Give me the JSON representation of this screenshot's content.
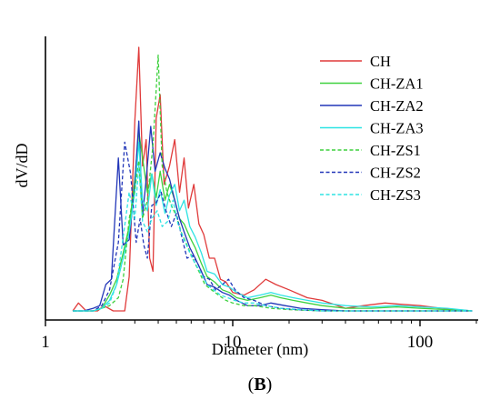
{
  "chart_data": {
    "type": "line",
    "panel_label": {
      "open": "(",
      "letter": "B",
      "close": ")"
    },
    "xlabel": "Diameter (nm)",
    "ylabel": "dV/dD",
    "xscale": "log",
    "xlim": [
      1,
      200
    ],
    "ylim": [
      0,
      1
    ],
    "x_ticks": [
      1,
      10,
      100
    ],
    "x_tick_labels": [
      "1",
      "10",
      "100"
    ],
    "grid": false,
    "legend_position": "top-right",
    "series": [
      {
        "name": "CH",
        "color": "#e03a3a",
        "dash": "solid",
        "points": [
          [
            1.4,
            0
          ],
          [
            1.5,
            0.03
          ],
          [
            1.65,
            0
          ],
          [
            1.9,
            0
          ],
          [
            2.05,
            0.02
          ],
          [
            2.3,
            0
          ],
          [
            2.5,
            0
          ],
          [
            2.65,
            0
          ],
          [
            2.8,
            0.13
          ],
          [
            3.0,
            0.72
          ],
          [
            3.15,
            1.0
          ],
          [
            3.3,
            0.55
          ],
          [
            3.45,
            0.65
          ],
          [
            3.6,
            0.2
          ],
          [
            3.75,
            0.15
          ],
          [
            3.9,
            0.73
          ],
          [
            4.1,
            0.82
          ],
          [
            4.3,
            0.48
          ],
          [
            4.6,
            0.55
          ],
          [
            4.9,
            0.65
          ],
          [
            5.2,
            0.45
          ],
          [
            5.5,
            0.58
          ],
          [
            5.8,
            0.39
          ],
          [
            6.2,
            0.48
          ],
          [
            6.6,
            0.33
          ],
          [
            7.0,
            0.29
          ],
          [
            7.5,
            0.2
          ],
          [
            8.0,
            0.2
          ],
          [
            8.6,
            0.12
          ],
          [
            9.2,
            0.11
          ],
          [
            10.0,
            0.07
          ],
          [
            11.5,
            0.06
          ],
          [
            13.0,
            0.08
          ],
          [
            15.0,
            0.12
          ],
          [
            17.0,
            0.1
          ],
          [
            20.0,
            0.08
          ],
          [
            25.0,
            0.05
          ],
          [
            30.0,
            0.04
          ],
          [
            40.0,
            0.01
          ],
          [
            50.0,
            0.02
          ],
          [
            65.0,
            0.03
          ],
          [
            80.0,
            0.025
          ],
          [
            100.0,
            0.02
          ],
          [
            130.0,
            0.01
          ],
          [
            190.0,
            0.0
          ]
        ]
      },
      {
        "name": "CH-ZA1",
        "color": "#3ed13e",
        "dash": "solid",
        "points": [
          [
            1.4,
            0
          ],
          [
            1.6,
            0
          ],
          [
            1.8,
            0
          ],
          [
            2.0,
            0.01
          ],
          [
            2.2,
            0.06
          ],
          [
            2.4,
            0.12
          ],
          [
            2.6,
            0.22
          ],
          [
            2.8,
            0.32
          ],
          [
            3.0,
            0.5
          ],
          [
            3.15,
            0.68
          ],
          [
            3.3,
            0.58
          ],
          [
            3.5,
            0.45
          ],
          [
            3.7,
            0.52
          ],
          [
            3.9,
            0.43
          ],
          [
            4.1,
            0.53
          ],
          [
            4.35,
            0.42
          ],
          [
            4.6,
            0.48
          ],
          [
            4.9,
            0.42
          ],
          [
            5.2,
            0.35
          ],
          [
            5.5,
            0.33
          ],
          [
            5.9,
            0.28
          ],
          [
            6.3,
            0.24
          ],
          [
            6.8,
            0.18
          ],
          [
            7.3,
            0.13
          ],
          [
            8.0,
            0.11
          ],
          [
            8.8,
            0.08
          ],
          [
            9.6,
            0.07
          ],
          [
            10.5,
            0.05
          ],
          [
            12.0,
            0.04
          ],
          [
            14.0,
            0.05
          ],
          [
            16.0,
            0.06
          ],
          [
            18.0,
            0.05
          ],
          [
            21.0,
            0.04
          ],
          [
            25.0,
            0.03
          ],
          [
            30.0,
            0.02
          ],
          [
            40.0,
            0.01
          ],
          [
            55.0,
            0.01
          ],
          [
            75.0,
            0.015
          ],
          [
            100.0,
            0.01
          ],
          [
            140.0,
            0.005
          ],
          [
            190.0,
            0.0
          ]
        ]
      },
      {
        "name": "CH-ZA2",
        "color": "#2236b8",
        "dash": "solid",
        "points": [
          [
            1.4,
            0
          ],
          [
            1.6,
            0
          ],
          [
            1.8,
            0.01
          ],
          [
            1.95,
            0.02
          ],
          [
            2.1,
            0.1
          ],
          [
            2.25,
            0.12
          ],
          [
            2.45,
            0.58
          ],
          [
            2.6,
            0.25
          ],
          [
            2.8,
            0.27
          ],
          [
            3.0,
            0.48
          ],
          [
            3.15,
            0.72
          ],
          [
            3.3,
            0.36
          ],
          [
            3.45,
            0.5
          ],
          [
            3.65,
            0.7
          ],
          [
            3.85,
            0.53
          ],
          [
            4.1,
            0.6
          ],
          [
            4.35,
            0.54
          ],
          [
            4.6,
            0.5
          ],
          [
            4.9,
            0.42
          ],
          [
            5.2,
            0.35
          ],
          [
            5.5,
            0.3
          ],
          [
            5.9,
            0.24
          ],
          [
            6.3,
            0.2
          ],
          [
            6.8,
            0.15
          ],
          [
            7.3,
            0.1
          ],
          [
            8.0,
            0.09
          ],
          [
            8.8,
            0.07
          ],
          [
            9.6,
            0.06
          ],
          [
            10.5,
            0.04
          ],
          [
            12.0,
            0.02
          ],
          [
            14.0,
            0.02
          ],
          [
            16.0,
            0.03
          ],
          [
            19.0,
            0.02
          ],
          [
            23.0,
            0.01
          ],
          [
            30.0,
            0.005
          ],
          [
            40.0,
            0.0
          ],
          [
            60.0,
            0.0
          ],
          [
            100.0,
            0.0
          ],
          [
            190.0,
            0.0
          ]
        ]
      },
      {
        "name": "CH-ZA3",
        "color": "#2ee3e3",
        "dash": "solid",
        "points": [
          [
            1.4,
            0
          ],
          [
            1.6,
            0
          ],
          [
            1.8,
            0
          ],
          [
            2.0,
            0.01
          ],
          [
            2.2,
            0.04
          ],
          [
            2.4,
            0.1
          ],
          [
            2.6,
            0.2
          ],
          [
            2.8,
            0.3
          ],
          [
            3.0,
            0.45
          ],
          [
            3.15,
            0.64
          ],
          [
            3.3,
            0.42
          ],
          [
            3.5,
            0.38
          ],
          [
            3.7,
            0.52
          ],
          [
            3.9,
            0.4
          ],
          [
            4.1,
            0.46
          ],
          [
            4.35,
            0.37
          ],
          [
            4.6,
            0.44
          ],
          [
            4.9,
            0.48
          ],
          [
            5.2,
            0.38
          ],
          [
            5.5,
            0.42
          ],
          [
            5.9,
            0.32
          ],
          [
            6.3,
            0.28
          ],
          [
            6.8,
            0.22
          ],
          [
            7.3,
            0.15
          ],
          [
            8.0,
            0.14
          ],
          [
            8.8,
            0.1
          ],
          [
            9.6,
            0.09
          ],
          [
            10.5,
            0.07
          ],
          [
            12.0,
            0.05
          ],
          [
            14.0,
            0.06
          ],
          [
            16.0,
            0.07
          ],
          [
            18.0,
            0.06
          ],
          [
            21.0,
            0.05
          ],
          [
            25.0,
            0.04
          ],
          [
            30.0,
            0.03
          ],
          [
            40.0,
            0.02
          ],
          [
            55.0,
            0.015
          ],
          [
            75.0,
            0.02
          ],
          [
            100.0,
            0.015
          ],
          [
            140.0,
            0.01
          ],
          [
            190.0,
            0.0
          ]
        ]
      },
      {
        "name": "CH-ZS1",
        "color": "#3ed13e",
        "dash": "dashed",
        "points": [
          [
            1.4,
            0
          ],
          [
            1.6,
            0
          ],
          [
            1.8,
            0
          ],
          [
            2.0,
            0.01
          ],
          [
            2.2,
            0.02
          ],
          [
            2.45,
            0.05
          ],
          [
            2.6,
            0.12
          ],
          [
            2.8,
            0.35
          ],
          [
            3.0,
            0.46
          ],
          [
            3.15,
            0.57
          ],
          [
            3.3,
            0.35
          ],
          [
            3.5,
            0.42
          ],
          [
            3.75,
            0.63
          ],
          [
            4.0,
            0.97
          ],
          [
            4.2,
            0.55
          ],
          [
            4.45,
            0.45
          ],
          [
            4.7,
            0.4
          ],
          [
            5.0,
            0.36
          ],
          [
            5.3,
            0.3
          ],
          [
            5.7,
            0.25
          ],
          [
            6.1,
            0.2
          ],
          [
            6.6,
            0.15
          ],
          [
            7.1,
            0.1
          ],
          [
            7.7,
            0.08
          ],
          [
            8.4,
            0.06
          ],
          [
            9.2,
            0.04
          ],
          [
            10.0,
            0.03
          ],
          [
            11.5,
            0.02
          ],
          [
            13.0,
            0.02
          ],
          [
            16.0,
            0.01
          ],
          [
            20.0,
            0.005
          ],
          [
            30.0,
            0.0
          ],
          [
            50.0,
            0.0
          ],
          [
            100.0,
            0.0
          ],
          [
            190.0,
            0.0
          ]
        ]
      },
      {
        "name": "CH-ZS2",
        "color": "#2236b8",
        "dash": "dashed",
        "points": [
          [
            1.4,
            0
          ],
          [
            1.6,
            0
          ],
          [
            1.8,
            0
          ],
          [
            2.0,
            0.02
          ],
          [
            2.2,
            0.08
          ],
          [
            2.45,
            0.26
          ],
          [
            2.65,
            0.64
          ],
          [
            2.85,
            0.52
          ],
          [
            3.05,
            0.26
          ],
          [
            3.2,
            0.35
          ],
          [
            3.35,
            0.25
          ],
          [
            3.5,
            0.2
          ],
          [
            3.7,
            0.4
          ],
          [
            3.9,
            0.41
          ],
          [
            4.15,
            0.45
          ],
          [
            4.4,
            0.38
          ],
          [
            4.7,
            0.32
          ],
          [
            5.0,
            0.37
          ],
          [
            5.35,
            0.28
          ],
          [
            5.7,
            0.2
          ],
          [
            6.1,
            0.21
          ],
          [
            6.5,
            0.18
          ],
          [
            7.0,
            0.13
          ],
          [
            7.5,
            0.12
          ],
          [
            8.1,
            0.08
          ],
          [
            8.8,
            0.1
          ],
          [
            9.5,
            0.12
          ],
          [
            10.3,
            0.08
          ],
          [
            11.5,
            0.05
          ],
          [
            13.0,
            0.04
          ],
          [
            15.0,
            0.02
          ],
          [
            18.0,
            0.01
          ],
          [
            22.0,
            0.005
          ],
          [
            30.0,
            0.0
          ],
          [
            50.0,
            0.0
          ],
          [
            100.0,
            0.0
          ],
          [
            190.0,
            0.0
          ]
        ]
      },
      {
        "name": "CH-ZS3",
        "color": "#2ee3e3",
        "dash": "dashed",
        "points": [
          [
            1.4,
            0
          ],
          [
            1.6,
            0
          ],
          [
            1.8,
            0
          ],
          [
            2.0,
            0.01
          ],
          [
            2.2,
            0.03
          ],
          [
            2.4,
            0.1
          ],
          [
            2.6,
            0.28
          ],
          [
            2.8,
            0.45
          ],
          [
            3.0,
            0.35
          ],
          [
            3.15,
            0.55
          ],
          [
            3.3,
            0.34
          ],
          [
            3.5,
            0.3
          ],
          [
            3.7,
            0.35
          ],
          [
            3.95,
            0.38
          ],
          [
            4.2,
            0.32
          ],
          [
            4.5,
            0.34
          ],
          [
            4.8,
            0.42
          ],
          [
            5.1,
            0.33
          ],
          [
            5.5,
            0.27
          ],
          [
            5.9,
            0.22
          ],
          [
            6.3,
            0.18
          ],
          [
            6.8,
            0.14
          ],
          [
            7.3,
            0.1
          ],
          [
            7.9,
            0.08
          ],
          [
            8.6,
            0.06
          ],
          [
            9.4,
            0.05
          ],
          [
            10.2,
            0.04
          ],
          [
            11.5,
            0.03
          ],
          [
            13.0,
            0.03
          ],
          [
            15.0,
            0.02
          ],
          [
            18.0,
            0.01
          ],
          [
            23.0,
            0.005
          ],
          [
            30.0,
            0.0
          ],
          [
            50.0,
            0.0
          ],
          [
            100.0,
            0.0
          ],
          [
            190.0,
            0.0
          ]
        ]
      }
    ]
  }
}
